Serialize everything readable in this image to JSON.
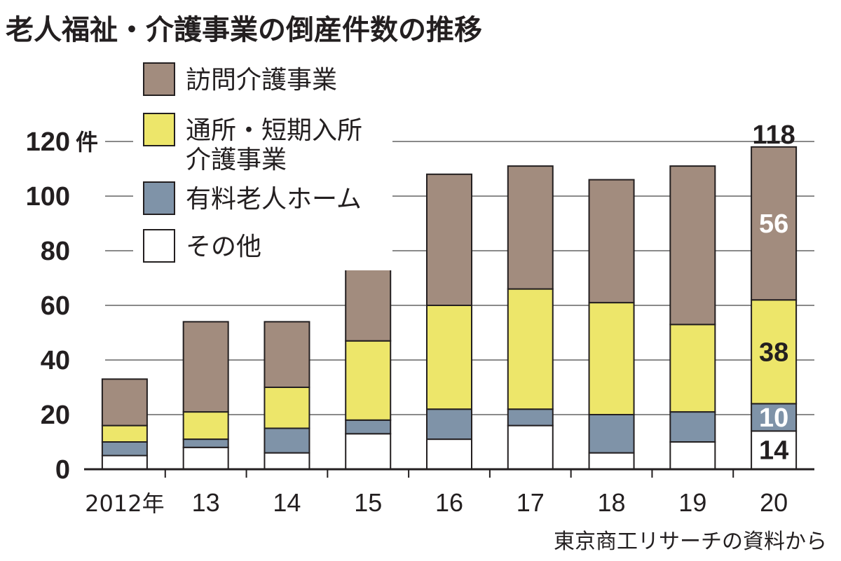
{
  "chart_data": {
    "type": "bar",
    "stacked": true,
    "title": "老人福祉・介護事業の倒産件数の推移",
    "unit": "件",
    "categories": [
      "2012年",
      "13",
      "14",
      "15",
      "16",
      "17",
      "18",
      "19",
      "20"
    ],
    "series": [
      {
        "name": "その他",
        "color": "#ffffff",
        "values": [
          5,
          8,
          6,
          13,
          11,
          16,
          6,
          10,
          14
        ]
      },
      {
        "name": "有料老人ホーム",
        "color": "#7f93a8",
        "values": [
          5,
          3,
          9,
          5,
          11,
          6,
          14,
          11,
          10
        ]
      },
      {
        "name": "通所・短期入所\n介護事業",
        "color": "#ede66a",
        "values": [
          6,
          10,
          15,
          29,
          38,
          44,
          41,
          32,
          38
        ]
      },
      {
        "name": "訪問介護事業",
        "color": "#a28c7e",
        "values": [
          17,
          33,
          24,
          29,
          48,
          45,
          45,
          58,
          56
        ]
      }
    ],
    "totals": [
      33,
      54,
      54,
      76,
      108,
      111,
      106,
      111,
      118
    ],
    "ylim": [
      0,
      120
    ],
    "yticks": [
      0,
      20,
      40,
      60,
      80,
      100,
      120
    ],
    "grid": true,
    "legend": "top-left",
    "annotations": [
      {
        "category": "20",
        "series": "その他",
        "text": "14",
        "color": "#231f20"
      },
      {
        "category": "20",
        "series": "有料老人ホーム",
        "text": "10",
        "color": "#ffffff"
      },
      {
        "category": "20",
        "series": "通所・短期入所\n介護事業",
        "text": "38",
        "color": "#231f20"
      },
      {
        "category": "20",
        "series": "訪問介護事業",
        "text": "56",
        "color": "#ffffff"
      },
      {
        "category": "20",
        "series": "total",
        "text": "118",
        "color": "#231f20"
      }
    ],
    "source": "東京商工リサーチの資料から"
  }
}
